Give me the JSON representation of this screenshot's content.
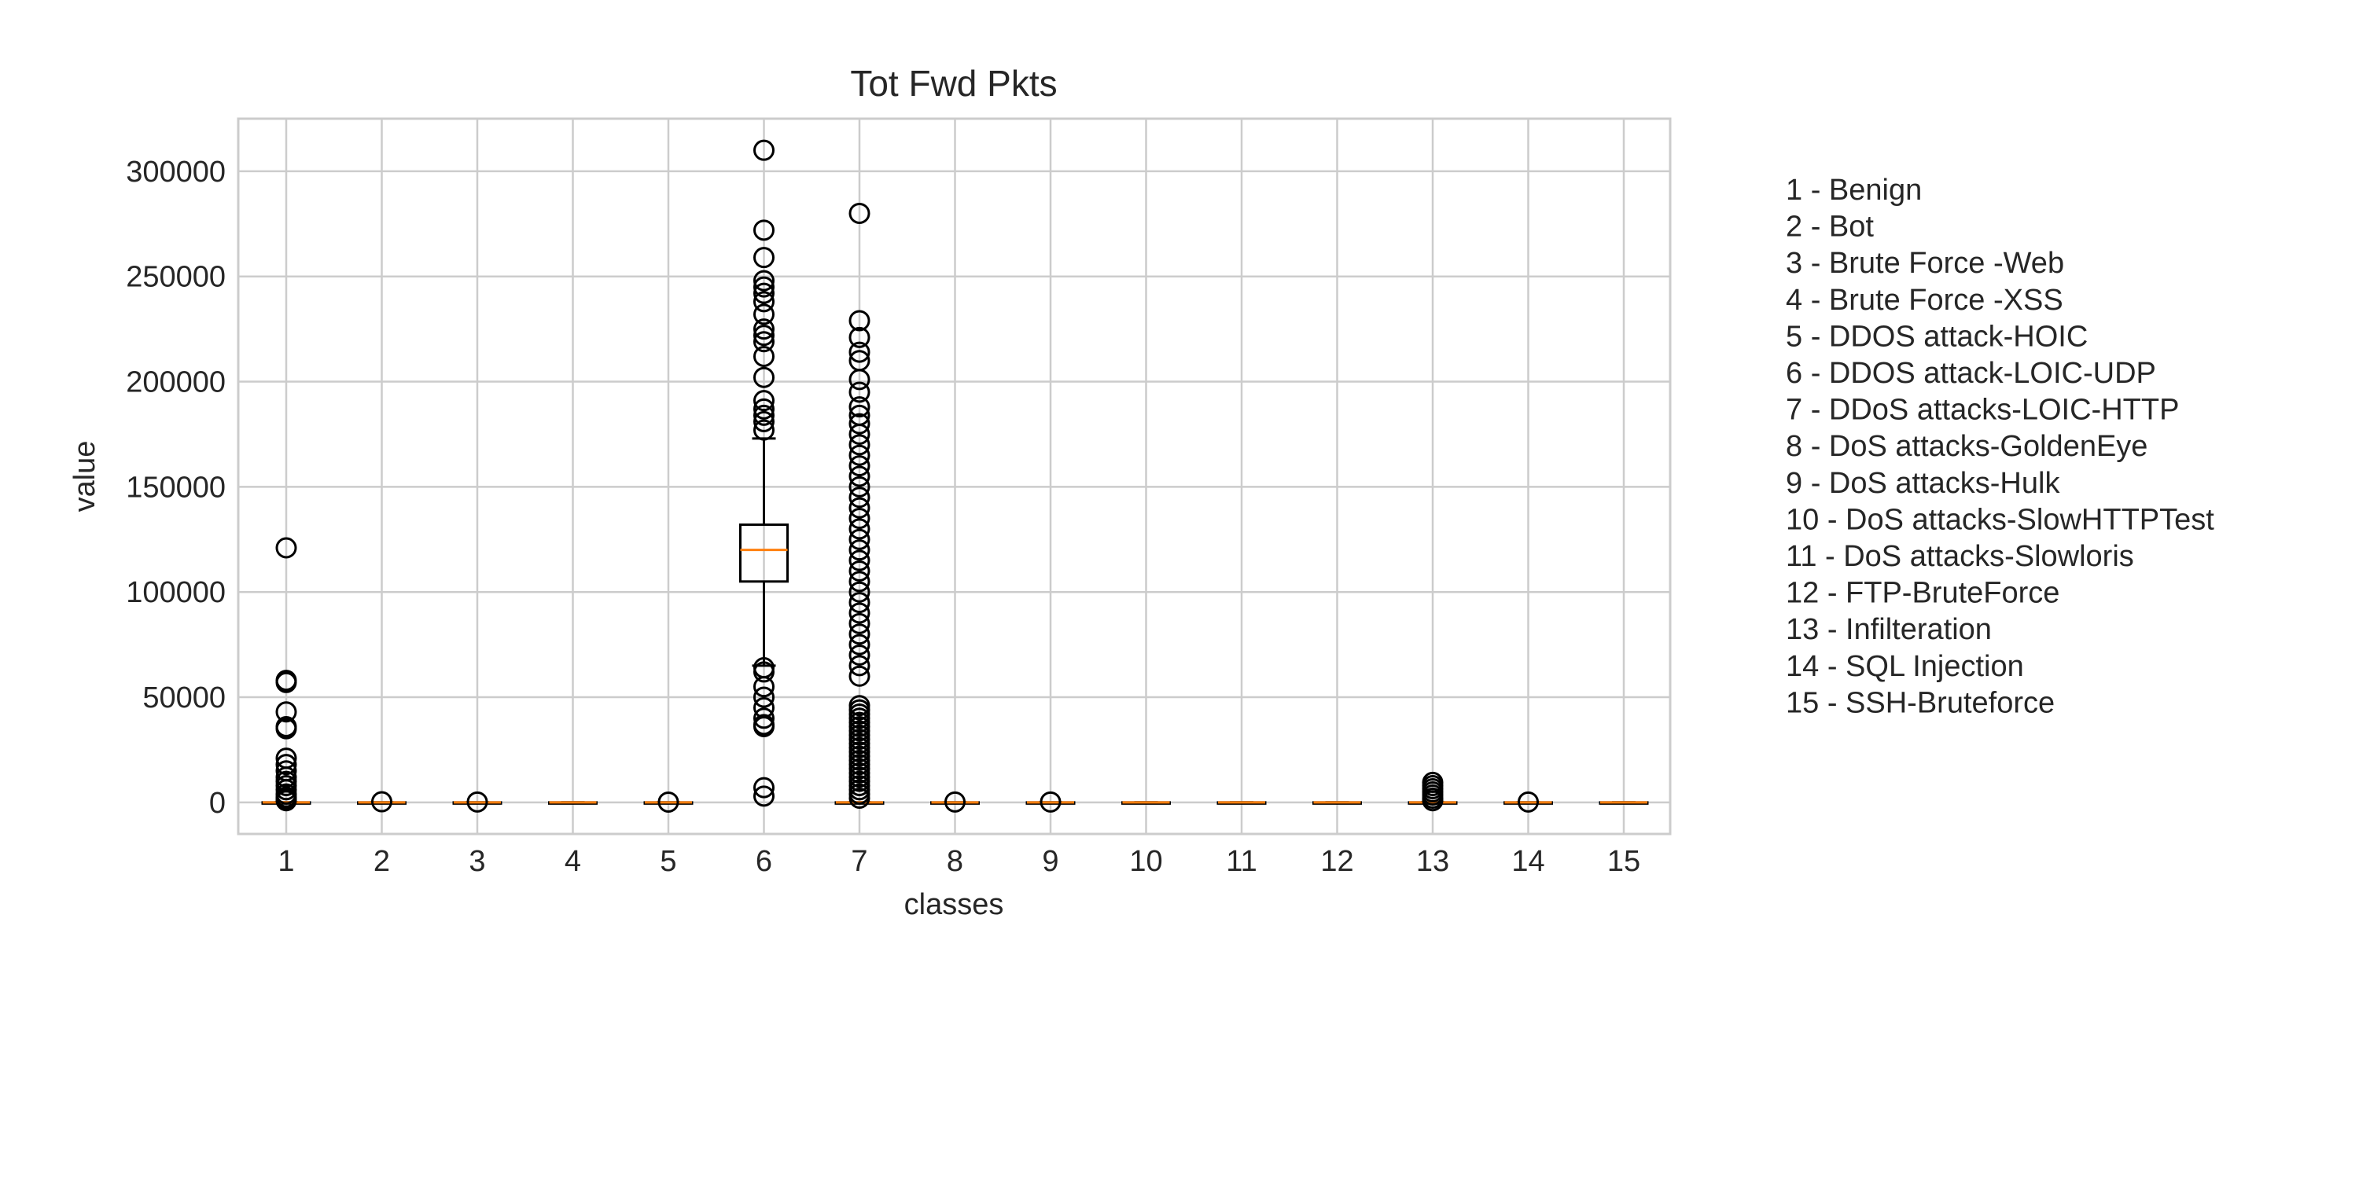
{
  "chart_data": {
    "type": "boxplot",
    "title": "Tot Fwd Pkts",
    "xlabel": "classes",
    "ylabel": "value",
    "ylim": [
      -15000,
      325000
    ],
    "yticks": [
      0,
      50000,
      100000,
      150000,
      200000,
      250000,
      300000
    ],
    "grid": true,
    "legend_position": "right",
    "categories": [
      "1",
      "2",
      "3",
      "4",
      "5",
      "6",
      "7",
      "8",
      "9",
      "10",
      "11",
      "12",
      "13",
      "14",
      "15"
    ],
    "legend_entries": [
      "1 - Benign",
      "2 - Bot",
      "3 - Brute Force -Web",
      "4 - Brute Force -XSS",
      "5 - DDOS attack-HOIC",
      "6 - DDOS attack-LOIC-UDP",
      "7 - DDoS attacks-LOIC-HTTP",
      "8 - DoS attacks-GoldenEye",
      "9 - DoS attacks-Hulk",
      "10 - DoS attacks-SlowHTTPTest",
      "11 - DoS attacks-Slowloris",
      "12 - FTP-BruteForce",
      "13 - Infilteration",
      "14 - SQL Injection",
      "15 - SSH-Bruteforce"
    ],
    "boxes": [
      {
        "category": "1",
        "whislo": 0,
        "q1": 0,
        "med": 1,
        "q3": 2,
        "whishi": 5,
        "fliers": [
          121000,
          58000,
          57000,
          43000,
          36000,
          35000,
          21000,
          18000,
          15000,
          12000,
          10000,
          8000,
          6000,
          4000,
          2500,
          1500,
          800
        ]
      },
      {
        "category": "2",
        "whislo": 0,
        "q1": 0,
        "med": 1,
        "q3": 1,
        "whishi": 2,
        "fliers": [
          300
        ]
      },
      {
        "category": "3",
        "whislo": 0,
        "q1": 0,
        "med": 1,
        "q3": 2,
        "whishi": 3,
        "fliers": [
          200
        ]
      },
      {
        "category": "4",
        "whislo": 0,
        "q1": 0,
        "med": 1,
        "q3": 2,
        "whishi": 3,
        "fliers": []
      },
      {
        "category": "5",
        "whislo": 0,
        "q1": 0,
        "med": 1,
        "q3": 1,
        "whishi": 2,
        "fliers": [
          150
        ]
      },
      {
        "category": "6",
        "whislo": 65000,
        "q1": 105000,
        "med": 120000,
        "q3": 132000,
        "whishi": 173000,
        "fliers": [
          310000,
          272000,
          259000,
          248000,
          245000,
          242000,
          238000,
          232000,
          225000,
          222000,
          219000,
          212000,
          202000,
          191000,
          187000,
          184000,
          181000,
          177000,
          64000,
          62000,
          55000,
          50000,
          45000,
          40000,
          37000,
          36000,
          7000,
          3000
        ]
      },
      {
        "category": "7",
        "whislo": 0,
        "q1": 0,
        "med": 1,
        "q3": 2,
        "whishi": 5,
        "fliers": [
          280000,
          229000,
          221000,
          214000,
          210000,
          201000,
          195000,
          188000,
          184000,
          180000,
          175000,
          170000,
          165000,
          160000,
          155000,
          150000,
          145000,
          140000,
          135000,
          130000,
          125000,
          120000,
          115000,
          110000,
          105000,
          100000,
          95000,
          90000,
          85000,
          80000,
          75000,
          70000,
          65000,
          60000,
          46000,
          44000,
          42000,
          40000,
          38000,
          36000,
          34000,
          32000,
          30000,
          28000,
          26000,
          24000,
          22000,
          20000,
          18000,
          16000,
          14000,
          12000,
          10000,
          8000,
          6000,
          4000,
          2000
        ]
      },
      {
        "category": "8",
        "whislo": 0,
        "q1": 0,
        "med": 1,
        "q3": 2,
        "whishi": 3,
        "fliers": [
          200
        ]
      },
      {
        "category": "9",
        "whislo": 0,
        "q1": 0,
        "med": 1,
        "q3": 2,
        "whishi": 3,
        "fliers": [
          200
        ]
      },
      {
        "category": "10",
        "whislo": 0,
        "q1": 0,
        "med": 1,
        "q3": 1,
        "whishi": 2,
        "fliers": []
      },
      {
        "category": "11",
        "whislo": 0,
        "q1": 0,
        "med": 1,
        "q3": 1,
        "whishi": 2,
        "fliers": []
      },
      {
        "category": "12",
        "whislo": 0,
        "q1": 0,
        "med": 1,
        "q3": 1,
        "whishi": 2,
        "fliers": []
      },
      {
        "category": "13",
        "whislo": 0,
        "q1": 0,
        "med": 1,
        "q3": 2,
        "whishi": 5,
        "fliers": [
          9500,
          8000,
          6500,
          5000,
          3500,
          2000,
          800
        ]
      },
      {
        "category": "14",
        "whislo": 0,
        "q1": 0,
        "med": 1,
        "q3": 2,
        "whishi": 3,
        "fliers": [
          200
        ]
      },
      {
        "category": "15",
        "whislo": 0,
        "q1": 0,
        "med": 1,
        "q3": 1,
        "whishi": 2,
        "fliers": []
      }
    ],
    "colors": {
      "box": "#000000",
      "median": "#ff7f0e",
      "grid": "#cccccc",
      "text": "#262626"
    }
  }
}
